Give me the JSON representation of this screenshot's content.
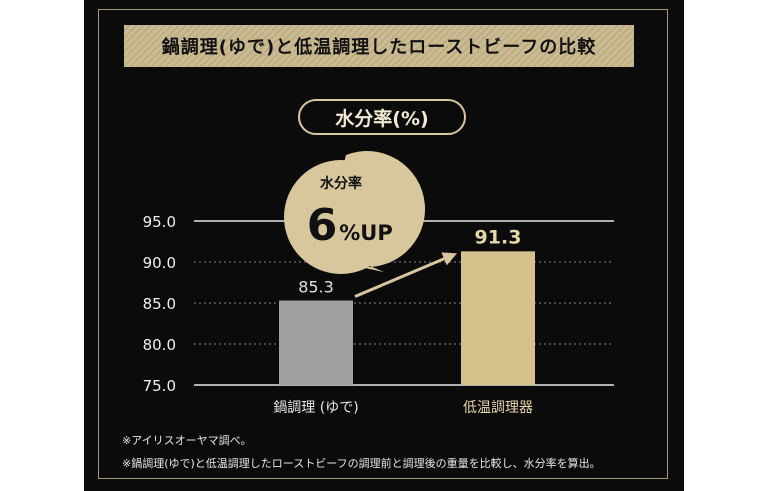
{
  "header": {
    "title": "鍋調理(ゆで)と低温調理したローストビーフの比較"
  },
  "metric_label": "水分率(%)",
  "callout": {
    "top": "水分率",
    "big": "6",
    "unit": "%UP"
  },
  "colors": {
    "bar_1": "#a0a0a0",
    "bar_2": "#d6c08c",
    "accent": "#d8c79c",
    "background": "#0b0b0b"
  },
  "notes": [
    "※アイリスオーヤマ調べ。",
    "※鍋調理(ゆで)と低温調理したローストビーフの調理前と調理後の重量を比較し、水分率を算出。"
  ],
  "chart_data": {
    "type": "bar",
    "categories": [
      "鍋調理 (ゆで)",
      "低温調理器"
    ],
    "values": [
      85.3,
      91.3
    ],
    "value_labels": [
      "85.3",
      "91.3"
    ],
    "ylim": [
      75.0,
      95.0
    ],
    "yticks": [
      "75.0",
      "80.0",
      "85.0",
      "90.0",
      "95.0"
    ],
    "grid": true,
    "legend": "none"
  }
}
